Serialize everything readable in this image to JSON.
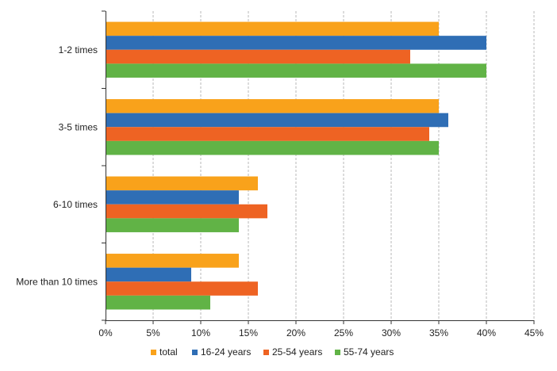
{
  "chart_data": {
    "type": "bar",
    "orientation": "horizontal",
    "categories": [
      "1-2 times",
      "3-5 times",
      "6-10 times",
      "More than 10 times"
    ],
    "series": [
      {
        "name": "total",
        "color": "#F9A21B",
        "values": [
          35,
          35,
          16,
          14
        ]
      },
      {
        "name": "16-24 years",
        "color": "#2F6EB5",
        "values": [
          40,
          36,
          14,
          9
        ]
      },
      {
        "name": "25-54 years",
        "color": "#EE6323",
        "values": [
          32,
          34,
          17,
          16
        ]
      },
      {
        "name": "55-74 years",
        "color": "#61B346",
        "values": [
          40,
          35,
          14,
          11
        ]
      }
    ],
    "xlim": [
      0,
      45
    ],
    "xticks": [
      0,
      5,
      10,
      15,
      20,
      25,
      30,
      35,
      40,
      45
    ],
    "xtick_labels": [
      "0%",
      "5%",
      "10%",
      "15%",
      "20%",
      "25%",
      "30%",
      "35%",
      "40%",
      "45%"
    ],
    "grid": "vertical dashed",
    "legend_position": "bottom",
    "title": "",
    "xlabel": "",
    "ylabel": ""
  }
}
